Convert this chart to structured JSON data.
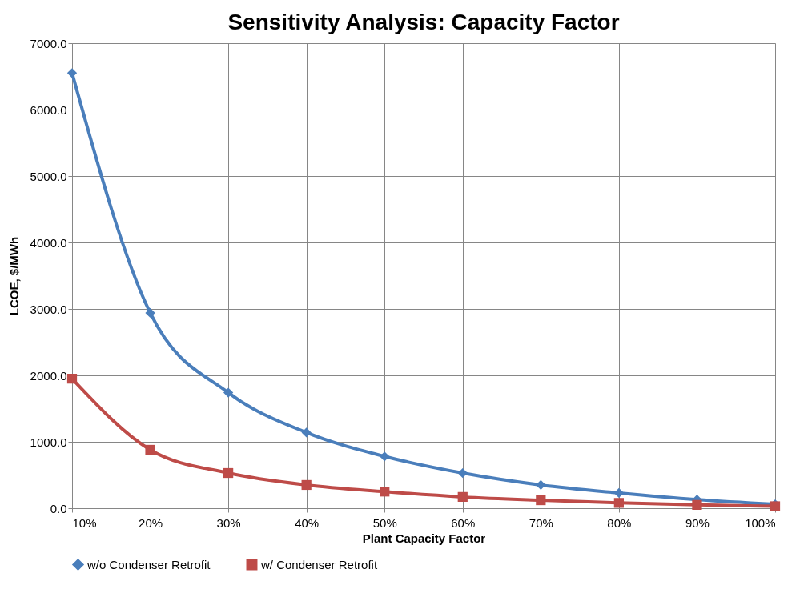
{
  "chart_data": {
    "type": "line",
    "title": "Sensitivity Analysis: Capacity Factor",
    "xlabel": "Plant Capacity Factor",
    "ylabel": "LCOE, $/MWh",
    "categories": [
      "10%",
      "20%",
      "30%",
      "40%",
      "50%",
      "60%",
      "70%",
      "80%",
      "90%",
      "100%"
    ],
    "series": [
      {
        "name": "w/o Condenser Retrofit",
        "color": "#4a7ebb",
        "marker": "diamond",
        "values": [
          6550,
          2940,
          1740,
          1140,
          780,
          530,
          350,
          230,
          130,
          60
        ]
      },
      {
        "name": "w/ Condenser Retrofit",
        "color": "#be4b48",
        "marker": "square",
        "values": [
          1950,
          880,
          530,
          350,
          250,
          170,
          120,
          80,
          50,
          30
        ]
      }
    ],
    "ylim": [
      0,
      7000
    ],
    "yticks": [
      {
        "value": 0,
        "label": "0.0"
      },
      {
        "value": 1000,
        "label": "1000.0"
      },
      {
        "value": 2000,
        "label": "2000.0"
      },
      {
        "value": 3000,
        "label": "3000.0"
      },
      {
        "value": 4000,
        "label": "4000.0"
      },
      {
        "value": 5000,
        "label": "5000.0"
      },
      {
        "value": 6000,
        "label": "6000.0"
      },
      {
        "value": 7000,
        "label": "7000.0"
      }
    ],
    "grid": true,
    "legend": "bottom",
    "line_style": "solid"
  }
}
